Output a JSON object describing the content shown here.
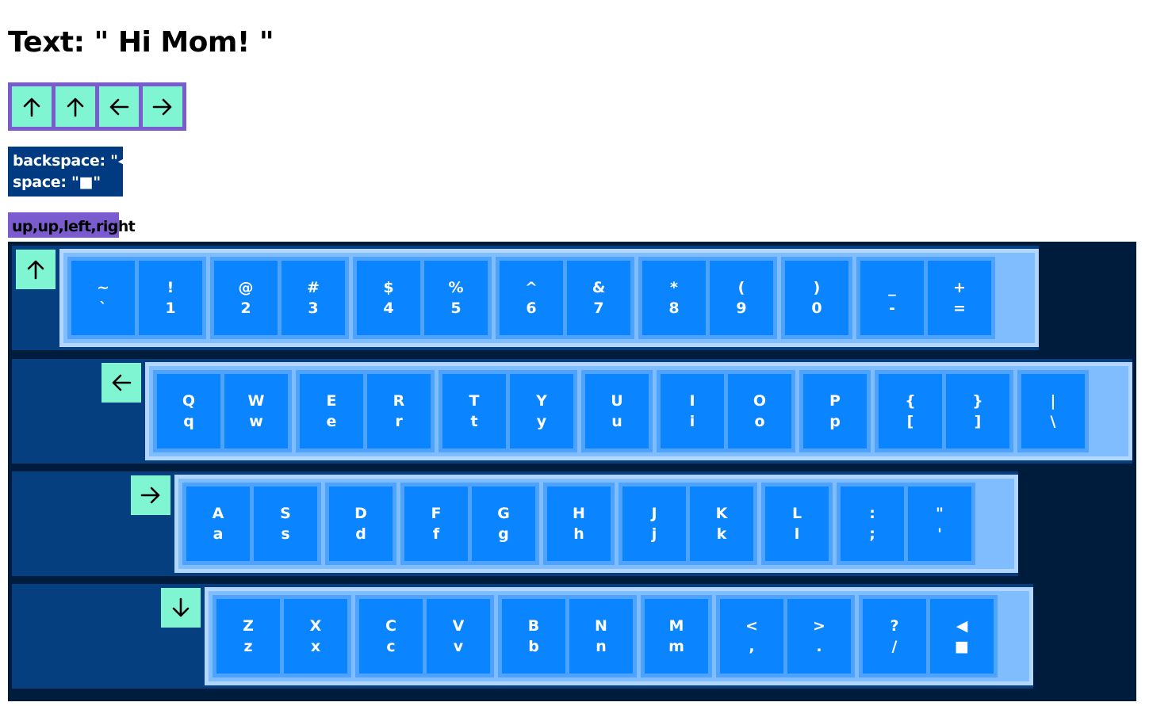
{
  "text_display": {
    "label": "Text: \" Hi Mom! \""
  },
  "sequence": [
    {
      "icon": "arrow-up-icon",
      "dir": "up"
    },
    {
      "icon": "arrow-up-icon",
      "dir": "up"
    },
    {
      "icon": "arrow-left-icon",
      "dir": "left"
    },
    {
      "icon": "arrow-right-icon",
      "dir": "right"
    }
  ],
  "legend": {
    "backspace": "backspace: \"◀\"",
    "space": "space: \"■\""
  },
  "route_text": "up,up,left,right",
  "colors": {
    "accent_purple": "#7b5ccf",
    "arrow_mint": "#7ff5d2",
    "key_blue": "#0a84ff",
    "dark_navy": "#001c3d"
  },
  "keyboard": {
    "rows": [
      {
        "arrow": "arrow-up-icon",
        "groups": [
          [
            {
              "upper": "~",
              "lower": "`"
            },
            {
              "upper": "!",
              "lower": "1"
            }
          ],
          [
            {
              "upper": "@",
              "lower": "2"
            },
            {
              "upper": "#",
              "lower": "3"
            }
          ],
          [
            {
              "upper": "$",
              "lower": "4"
            },
            {
              "upper": "%",
              "lower": "5"
            }
          ],
          [
            {
              "upper": "^",
              "lower": "6"
            },
            {
              "upper": "&",
              "lower": "7"
            }
          ],
          [
            {
              "upper": "*",
              "lower": "8"
            },
            {
              "upper": "(",
              "lower": "9"
            }
          ],
          [
            {
              "upper": ")",
              "lower": "0"
            }
          ],
          [
            {
              "upper": "_",
              "lower": "-"
            },
            {
              "upper": "+",
              "lower": "="
            }
          ]
        ]
      },
      {
        "arrow": "arrow-left-icon",
        "groups": [
          [
            {
              "upper": "Q",
              "lower": "q"
            },
            {
              "upper": "W",
              "lower": "w"
            }
          ],
          [
            {
              "upper": "E",
              "lower": "e"
            },
            {
              "upper": "R",
              "lower": "r"
            }
          ],
          [
            {
              "upper": "T",
              "lower": "t"
            },
            {
              "upper": "Y",
              "lower": "y"
            }
          ],
          [
            {
              "upper": "U",
              "lower": "u"
            }
          ],
          [
            {
              "upper": "I",
              "lower": "i"
            },
            {
              "upper": "O",
              "lower": "o"
            }
          ],
          [
            {
              "upper": "P",
              "lower": "p"
            }
          ],
          [
            {
              "upper": "{",
              "lower": "["
            },
            {
              "upper": "}",
              "lower": "]"
            }
          ],
          [
            {
              "upper": "|",
              "lower": "\\"
            }
          ]
        ]
      },
      {
        "arrow": "arrow-right-icon",
        "groups": [
          [
            {
              "upper": "A",
              "lower": "a"
            },
            {
              "upper": "S",
              "lower": "s"
            }
          ],
          [
            {
              "upper": "D",
              "lower": "d"
            }
          ],
          [
            {
              "upper": "F",
              "lower": "f"
            },
            {
              "upper": "G",
              "lower": "g"
            }
          ],
          [
            {
              "upper": "H",
              "lower": "h"
            }
          ],
          [
            {
              "upper": "J",
              "lower": "j"
            },
            {
              "upper": "K",
              "lower": "k"
            }
          ],
          [
            {
              "upper": "L",
              "lower": "l"
            }
          ],
          [
            {
              "upper": ":",
              "lower": ";"
            },
            {
              "upper": "\"",
              "lower": "'"
            }
          ]
        ]
      },
      {
        "arrow": "arrow-down-icon",
        "groups": [
          [
            {
              "upper": "Z",
              "lower": "z"
            },
            {
              "upper": "X",
              "lower": "x"
            }
          ],
          [
            {
              "upper": "C",
              "lower": "c"
            },
            {
              "upper": "V",
              "lower": "v"
            }
          ],
          [
            {
              "upper": "B",
              "lower": "b"
            },
            {
              "upper": "N",
              "lower": "n"
            }
          ],
          [
            {
              "upper": "M",
              "lower": "m"
            }
          ],
          [
            {
              "upper": "<",
              "lower": ","
            },
            {
              "upper": ">",
              "lower": "."
            }
          ],
          [
            {
              "upper": "?",
              "lower": "/"
            },
            {
              "upper": "◀",
              "lower": "■"
            }
          ]
        ]
      }
    ]
  }
}
